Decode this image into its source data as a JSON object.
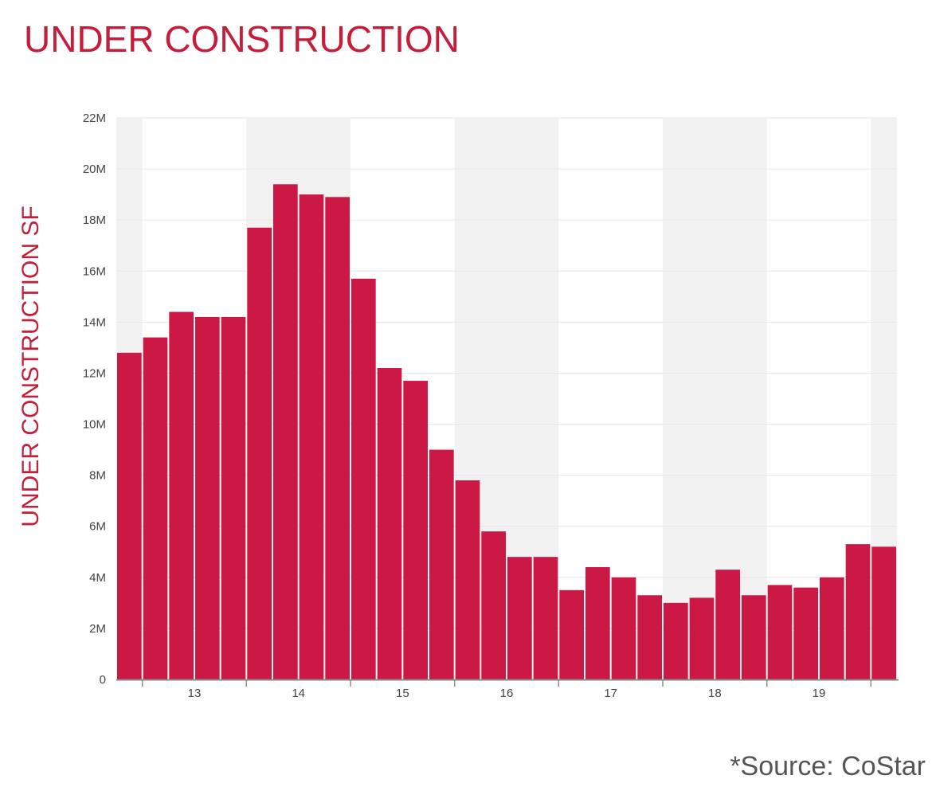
{
  "header": {
    "title": "UNDER CONSTRUCTION"
  },
  "footer": {
    "source": "*Source: CoStar"
  },
  "colors": {
    "title": "#c41e3a",
    "bar": "#cc1844",
    "band": "#f2f2f2",
    "grid": "#e6e6e6",
    "tick_text": "#444444",
    "source_text": "#555555"
  },
  "chart_data": {
    "type": "bar",
    "title": "UNDER CONSTRUCTION",
    "xlabel": "",
    "ylabel": "UNDER CONSTRUCTION SF",
    "ylim": [
      0,
      22000000
    ],
    "y_ticks": [
      0,
      2000000,
      4000000,
      6000000,
      8000000,
      10000000,
      12000000,
      14000000,
      16000000,
      18000000,
      20000000,
      22000000
    ],
    "y_tick_labels": [
      "0",
      "2M",
      "4M",
      "6M",
      "8M",
      "10M",
      "12M",
      "14M",
      "16M",
      "18M",
      "20M",
      "22M"
    ],
    "x_tick_labels": [
      "13",
      "14",
      "15",
      "16",
      "17",
      "18",
      "19"
    ],
    "grid": true,
    "legend": "none",
    "values": [
      12800000,
      13400000,
      14400000,
      14200000,
      14200000,
      17700000,
      19400000,
      19000000,
      18900000,
      15700000,
      12200000,
      11700000,
      9000000,
      7800000,
      5800000,
      4800000,
      4800000,
      3500000,
      4400000,
      4000000,
      3300000,
      3000000,
      3200000,
      4300000,
      3300000,
      3700000,
      3600000,
      4000000,
      5300000,
      5200000
    ]
  }
}
